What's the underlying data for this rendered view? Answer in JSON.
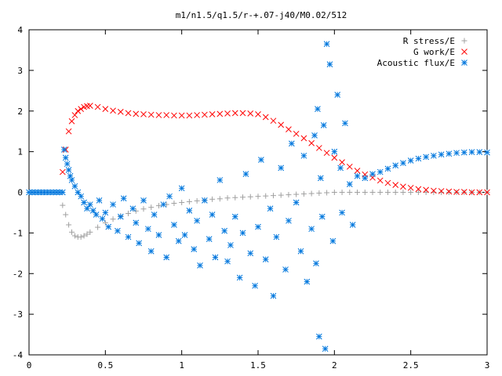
{
  "chart_data": {
    "type": "scatter",
    "title": "m1/n1.5/q1.5/r-+.07-j40/M0.02/512",
    "xlabel": "",
    "ylabel": "",
    "xlim": [
      0,
      3
    ],
    "ylim": [
      -4,
      4
    ],
    "xticks": [
      0,
      0.5,
      1,
      1.5,
      2,
      2.5,
      3
    ],
    "yticks": [
      -4,
      -3,
      -2,
      -1,
      0,
      1,
      2,
      3,
      4
    ],
    "grid": false,
    "legend_position": "top-right",
    "series": [
      {
        "name": "R stress/E",
        "marker": "plus",
        "color": "#a0a0a0",
        "x": [
          0.22,
          0.24,
          0.26,
          0.28,
          0.3,
          0.32,
          0.34,
          0.36,
          0.38,
          0.4,
          0.45,
          0.5,
          0.55,
          0.6,
          0.65,
          0.7,
          0.75,
          0.8,
          0.85,
          0.9,
          0.95,
          1.0,
          1.05,
          1.1,
          1.15,
          1.2,
          1.25,
          1.3,
          1.35,
          1.4,
          1.45,
          1.5,
          1.55,
          1.6,
          1.65,
          1.7,
          1.75,
          1.8,
          1.85,
          1.9,
          1.95,
          2.0,
          2.05,
          2.1,
          2.15,
          2.2,
          2.25,
          2.3,
          2.35,
          2.4,
          2.45,
          2.5,
          2.55,
          2.6,
          2.65,
          2.7,
          2.75,
          2.8,
          2.85,
          2.9,
          2.95,
          3.0
        ],
        "y": [
          -0.32,
          -0.55,
          -0.8,
          -0.98,
          -1.07,
          -1.1,
          -1.1,
          -1.07,
          -1.03,
          -0.98,
          -0.86,
          -0.75,
          -0.66,
          -0.58,
          -0.52,
          -0.46,
          -0.41,
          -0.37,
          -0.33,
          -0.3,
          -0.27,
          -0.25,
          -0.23,
          -0.21,
          -0.19,
          -0.17,
          -0.16,
          -0.14,
          -0.13,
          -0.12,
          -0.11,
          -0.1,
          -0.09,
          -0.08,
          -0.07,
          -0.06,
          -0.05,
          -0.04,
          -0.03,
          -0.02,
          -0.01,
          0.0,
          0.0,
          0.0,
          0.0,
          0.0,
          0.0,
          0.0,
          0.0,
          0.0,
          0.0,
          0.0,
          0.0,
          0.0,
          0.0,
          0.0,
          0.0,
          0.0,
          0.0,
          0.0,
          0.0,
          0.0
        ]
      },
      {
        "name": "G work/E",
        "marker": "cross",
        "color": "#ff0000",
        "x": [
          0.22,
          0.24,
          0.26,
          0.28,
          0.3,
          0.32,
          0.34,
          0.36,
          0.38,
          0.4,
          0.45,
          0.5,
          0.55,
          0.6,
          0.65,
          0.7,
          0.75,
          0.8,
          0.85,
          0.9,
          0.95,
          1.0,
          1.05,
          1.1,
          1.15,
          1.2,
          1.25,
          1.3,
          1.35,
          1.4,
          1.45,
          1.5,
          1.55,
          1.6,
          1.65,
          1.7,
          1.75,
          1.8,
          1.85,
          1.9,
          1.95,
          2.0,
          2.05,
          2.1,
          2.15,
          2.2,
          2.25,
          2.3,
          2.35,
          2.4,
          2.45,
          2.5,
          2.55,
          2.6,
          2.65,
          2.7,
          2.75,
          2.8,
          2.85,
          2.9,
          2.95,
          3.0
        ],
        "y": [
          0.5,
          1.05,
          1.5,
          1.75,
          1.9,
          2.0,
          2.05,
          2.1,
          2.12,
          2.13,
          2.1,
          2.05,
          2.01,
          1.98,
          1.95,
          1.93,
          1.92,
          1.91,
          1.9,
          1.9,
          1.89,
          1.89,
          1.89,
          1.9,
          1.91,
          1.92,
          1.93,
          1.94,
          1.95,
          1.95,
          1.94,
          1.92,
          1.85,
          1.76,
          1.66,
          1.55,
          1.44,
          1.33,
          1.21,
          1.09,
          0.97,
          0.85,
          0.74,
          0.63,
          0.53,
          0.44,
          0.36,
          0.29,
          0.23,
          0.18,
          0.14,
          0.11,
          0.08,
          0.06,
          0.04,
          0.03,
          0.02,
          0.01,
          0.01,
          0.0,
          0.0,
          0.0
        ]
      },
      {
        "name": "Acoustic flux/E",
        "marker": "star",
        "color": "#0077dd",
        "x": [
          0.0,
          0.02,
          0.04,
          0.06,
          0.08,
          0.1,
          0.12,
          0.14,
          0.16,
          0.18,
          0.2,
          0.22,
          0.23,
          0.24,
          0.25,
          0.26,
          0.27,
          0.28,
          0.3,
          0.32,
          0.34,
          0.36,
          0.38,
          0.4,
          0.42,
          0.44,
          0.46,
          0.48,
          0.5,
          0.52,
          0.55,
          0.58,
          0.6,
          0.62,
          0.65,
          0.68,
          0.7,
          0.72,
          0.75,
          0.78,
          0.8,
          0.82,
          0.85,
          0.88,
          0.9,
          0.92,
          0.95,
          0.98,
          1.0,
          1.02,
          1.05,
          1.08,
          1.1,
          1.12,
          1.15,
          1.18,
          1.2,
          1.22,
          1.25,
          1.28,
          1.3,
          1.32,
          1.35,
          1.38,
          1.4,
          1.42,
          1.45,
          1.48,
          1.5,
          1.52,
          1.55,
          1.58,
          1.6,
          1.62,
          1.65,
          1.68,
          1.7,
          1.72,
          1.75,
          1.78,
          1.8,
          1.82,
          1.85,
          1.87,
          1.88,
          1.89,
          1.9,
          1.91,
          1.92,
          1.93,
          1.94,
          1.95,
          1.97,
          1.99,
          2.0,
          2.02,
          2.04,
          2.05,
          2.07,
          2.1,
          2.12,
          2.15,
          2.2,
          2.25,
          2.3,
          2.35,
          2.4,
          2.45,
          2.5,
          2.55,
          2.6,
          2.65,
          2.7,
          2.75,
          2.8,
          2.85,
          2.9,
          2.95,
          3.0
        ],
        "y": [
          0.0,
          0.0,
          0.0,
          0.0,
          0.0,
          0.0,
          0.0,
          0.0,
          0.0,
          0.0,
          0.0,
          0.0,
          1.05,
          0.85,
          0.7,
          0.55,
          0.4,
          0.3,
          0.15,
          0.0,
          -0.1,
          -0.25,
          -0.4,
          -0.3,
          -0.45,
          -0.55,
          -0.2,
          -0.65,
          -0.5,
          -0.85,
          -0.3,
          -0.95,
          -0.6,
          -0.15,
          -1.1,
          -0.4,
          -0.75,
          -1.25,
          -0.2,
          -0.9,
          -1.45,
          -0.55,
          -1.05,
          -0.3,
          -1.6,
          -0.1,
          -0.8,
          -1.2,
          0.1,
          -1.05,
          -0.45,
          -1.4,
          -0.7,
          -1.8,
          -0.2,
          -1.15,
          -0.55,
          -1.6,
          0.3,
          -0.95,
          -1.7,
          -1.3,
          -0.6,
          -2.1,
          -1.0,
          0.45,
          -1.5,
          -2.3,
          -0.85,
          0.8,
          -1.65,
          -0.4,
          -2.55,
          -1.1,
          0.6,
          -1.9,
          -0.7,
          1.2,
          -0.25,
          -1.45,
          0.9,
          -2.2,
          -0.9,
          1.4,
          -1.75,
          2.05,
          -3.55,
          0.35,
          -0.6,
          1.65,
          -3.85,
          3.65,
          3.15,
          -1.2,
          1.0,
          2.4,
          0.6,
          -0.5,
          1.7,
          0.2,
          -0.8,
          0.4,
          0.35,
          0.45,
          0.5,
          0.58,
          0.66,
          0.72,
          0.78,
          0.83,
          0.87,
          0.9,
          0.93,
          0.95,
          0.97,
          0.98,
          0.99,
          0.99,
          0.98
        ]
      }
    ]
  }
}
